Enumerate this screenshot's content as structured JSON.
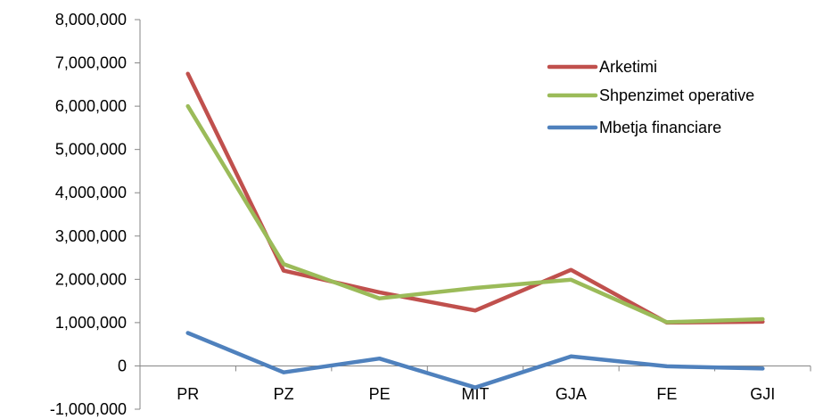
{
  "chart_data": {
    "type": "line",
    "categories": [
      "PR",
      "PZ",
      "PE",
      "MIT",
      "GJA",
      "FE",
      "GJI"
    ],
    "series": [
      {
        "name": "Arketimi",
        "color": "#C0504D",
        "values": [
          6750000,
          2200000,
          1700000,
          1280000,
          2220000,
          1000000,
          1020000
        ]
      },
      {
        "name": "Shpenzimet operative",
        "color": "#9BBB59",
        "values": [
          6000000,
          2350000,
          1560000,
          1800000,
          1990000,
          1010000,
          1080000
        ]
      },
      {
        "name": "Mbetja financiare",
        "color": "#4F81BD",
        "values": [
          760000,
          -150000,
          170000,
          -500000,
          220000,
          -10000,
          -60000
        ]
      }
    ],
    "ylim": [
      -1000000,
      8000000
    ],
    "yticks": [
      8000000,
      7000000,
      6000000,
      5000000,
      4000000,
      3000000,
      2000000,
      1000000,
      0,
      -1000000
    ],
    "ytick_labels": [
      "8,000,000",
      "7,000,000",
      "6,000,000",
      "5,000,000",
      "4,000,000",
      "3,000,000",
      "2,000,000",
      "1,000,000",
      "0",
      "-1,000,000"
    ],
    "title": "",
    "xlabel": "",
    "ylabel": "",
    "grid": false,
    "legend_position": "top-right"
  }
}
